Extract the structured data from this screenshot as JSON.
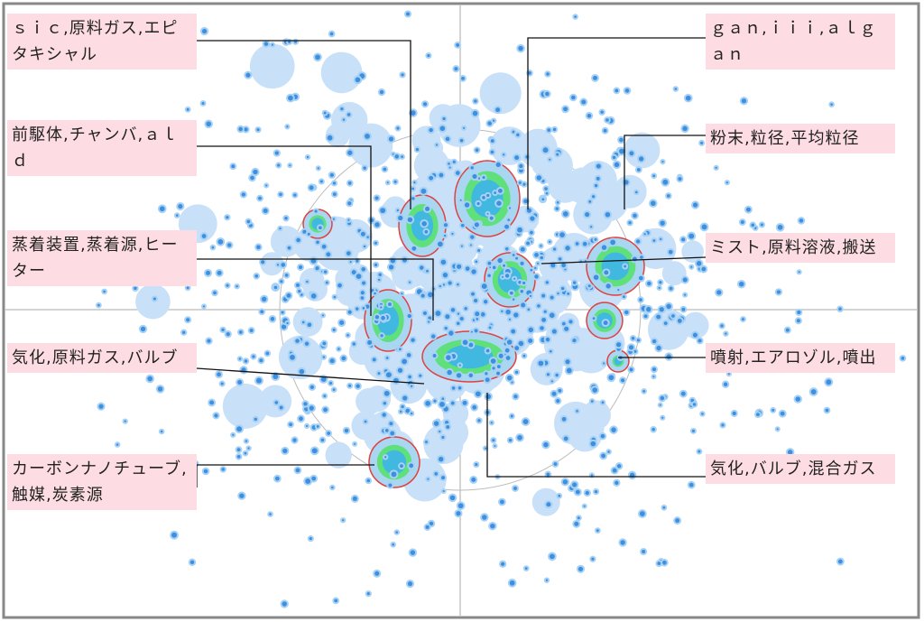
{
  "labels": [
    {
      "text": "ｓｉｃ,原料ガス,エピタキシャル"
    },
    {
      "text": "前駆体,チャンバ,ａｌｄ"
    },
    {
      "text": "蒸着装置,蒸着源,ヒーター"
    },
    {
      "text": "気化,原料ガス,バルブ"
    },
    {
      "text": "カーボンナノチューブ,触媒,炭素源"
    },
    {
      "text": "ｇａｎ,ｉｉｉ,ａｌｇａｎ"
    },
    {
      "text": "粉末,粒径,平均粒径"
    },
    {
      "text": "ミスト,原料溶液,搬送"
    },
    {
      "text": "噴射,エアロゾル,噴出"
    },
    {
      "text": "気化,バルブ,混合ガス"
    }
  ]
}
